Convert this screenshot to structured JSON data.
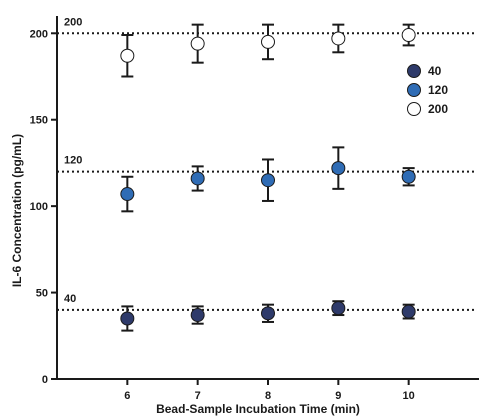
{
  "chart_data": {
    "type": "scatter",
    "title": "",
    "xlabel": "Bead-Sample Incubation Time (min)",
    "ylabel": "IL-6 Concentration (pg/mL)",
    "xlim": [
      5,
      11
    ],
    "ylim": [
      0,
      210
    ],
    "x_ticks": [
      6,
      7,
      8,
      9,
      10
    ],
    "y_ticks": [
      0,
      50,
      100,
      150,
      200
    ],
    "grid": false,
    "legend_position": "right",
    "reference_lines": [
      {
        "value": 40,
        "label": "40",
        "style": "dotted"
      },
      {
        "value": 120,
        "label": "120",
        "style": "dotted"
      },
      {
        "value": 200,
        "label": "200",
        "style": "dotted"
      }
    ],
    "series": [
      {
        "name": "40",
        "color": "#2e3a6a",
        "x": [
          6,
          7,
          8,
          9,
          10
        ],
        "y": [
          35,
          37,
          38,
          41,
          39
        ],
        "error": [
          7,
          5,
          5,
          4,
          4
        ]
      },
      {
        "name": "120",
        "color": "#2f6cb5",
        "x": [
          6,
          7,
          8,
          9,
          10
        ],
        "y": [
          107,
          116,
          115,
          122,
          117
        ],
        "error": [
          10,
          7,
          12,
          12,
          5
        ]
      },
      {
        "name": "200",
        "color": "#ffffff",
        "x": [
          6,
          7,
          8,
          9,
          10
        ],
        "y": [
          187,
          194,
          195,
          197,
          199
        ],
        "error": [
          12,
          11,
          10,
          8,
          6
        ]
      }
    ]
  }
}
